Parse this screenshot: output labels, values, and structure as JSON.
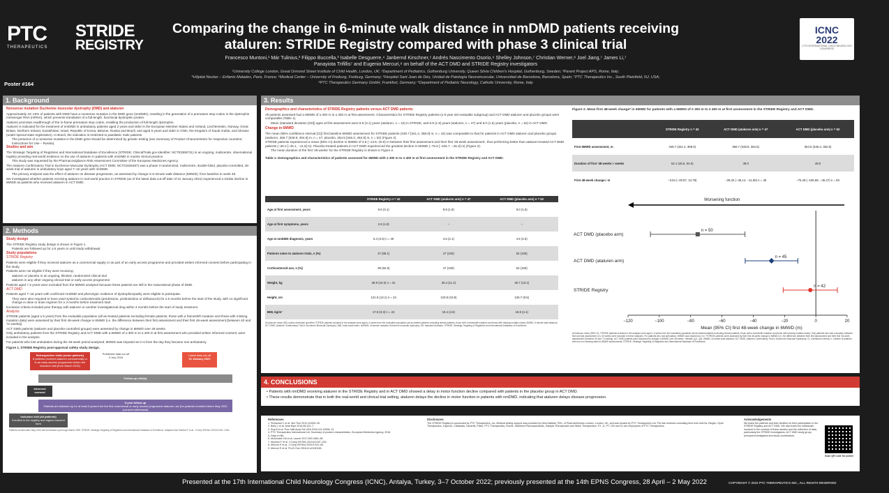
{
  "header": {
    "ptc_word": "PTC",
    "ptc_sub": "THERAPEUTICS",
    "stride_line1": "STRIDE",
    "stride_line2": "REGISTRY",
    "title_line1": "Comparing the change in 6-minute walk distance in nmDMD patients receiving",
    "title_line2": "ataluren: STRIDE Registry compared with phase 3 clinical trial",
    "authors_line1": "Francesco Muntoni,¹ Már Tulinius,² Filippo Buccella,³ Isabelle Desguerre,⁴ Janbernd Kirschner,⁵ Andrés Nascimento Osorio,⁶ Shelley Johnson,⁷ Christian Werner,⁸ Joel Jiang,⁷ James Li,⁷",
    "authors_line2": "Panayiota Trifillis⁷ and Eugenio Mercuri,⁹ on behalf of the ACT DMD and STRIDE Registry investigators",
    "affil_line1": "¹University College London, Great Ormond Street Institute of Child Health, London, UK; ²Department of Pediatrics, Gothenburg University, Queen Silvia Children's Hospital, Gothenburg, Sweden; ³Parent Project APS, Rome, Italy;",
    "affil_line2": "⁴Hôpital Necker – Enfants Malades, Paris, France; ⁵Medical Center – University of Freiburg, Freiburg, Germany; ⁶Hospital Sant Joan de Déu, Unidad de Patología Neuromuscular, Universidad de Barcelona, Barcelona, Spain; ⁷PTC Therapeutics Inc., South Plainfield, NJ, USA;",
    "affil_line3": "⁸PTC Therapeutics Germany GmbH, Frankfurt, Germany; ⁹Department of Pediatric Neurology, Catholic University, Rome, Italy",
    "icnc_big": "ICNC",
    "icnc_year": "2022",
    "icnc_small": "17TH INTERNATIONAL CHILD NEUROLOGY CONGRESS",
    "poster_no": "Poster #164"
  },
  "background": {
    "heading": "1. Background",
    "sub1": "Nonsense mutation Duchenne muscular dystrophy (DMD) and ataluren",
    "b1": "Approximately 10–15% of patients with DMD have a nonsense mutation in the DMD gene (nmDMD), resulting in the generation of a premature stop codon in the dystrophin messenger RNA (mRNA), which prevents translation of a full-length, functional dystrophin protein.",
    "b2": "Ataluren promotes readthrough of the in-frame premature stop codon, enabling the production of full-length dystrophin.",
    "b3": "Ataluren is indicated for the treatment of nmDMD in ambulatory patients aged 2 years and older in the European Member States and Iceland, Liechtenstein, Norway, Great Britain, Northern Ireland, Kazakhstan, Israel, Republic of Korea, Belarus, Russia and Brazil, and aged 5 years and older in Chile, the Kingdom of Saudi Arabia, and Ukraine (under special state registration). In Brazil, the indication is restricted to paediatric male patients.",
    "b3a": "The presence of a nonsense mutation in the DMD gene should be determined by genetic testing (see Summary of Product Characteristics for respective countries; Instructions for Use – Russia).",
    "sub2": "Studies and aim",
    "b4": "The Strategic Targeting of Registries and International Database of Excellence (STRIDE; ClinicalTrials.gov identifier: NCT02369731) is an ongoing, multicentre, observational registry providing real-world evidence on the use of ataluren in patients with nmDMD in routine clinical practice.",
    "b4a": "This study was requested by the Pharmacovigilance Risk Assessment Committee of the European Medicines Agency.",
    "b5": "The Ataluren Confirmatory Trial in Duchenne Muscular Dystrophy (ACT DMD; NCT01826487) was a phase 3 randomized, multicentre, double-blind, placebo-controlled, 48-week trial of ataluren in ambulatory boys aged 7–16 years with nmDMD.",
    "b5a": "The primary endpoint was the effect of ataluren on disease progression, as assessed by change in 6-minute walk distance (6MWD), from baseline to week 48.",
    "b6": "We investigated whether patients receiving ataluren in real-world practice in STRIDE (as of the latest data cut-off date of 31 January 2021) experienced a similar decline in 6MWD as patients who received ataluren in ACT DMD."
  },
  "methods": {
    "heading": "2. Methods",
    "sub1": "Study design",
    "m1": "The STRIDE Registry study design is shown in Figure 1.",
    "m1a": "Patients are followed up for ≥ 5 years or until study withdrawal.",
    "sub2": "Study populations",
    "sub2b": "STRIDE Registry",
    "m2": "Patients were eligible if they received ataluren as a commercial supply or as part of an early access programme and provided written informed consent before participating in the study.",
    "m3": "Patients were not eligible if they were receiving:",
    "m3a": "ataluren or placebo in an ongoing, blinded, randomized clinical trial",
    "m3b": "ataluren in any other ongoing clinical trial or early access programme.",
    "m4": "Patients aged < 5 years were excluded from the 6MWD analyses because these patients are still in the maturational phase of DMD.",
    "sub2c": "ACT DMD",
    "m5": "Patients aged 7–16 years with confirmed nmDMD and phenotypic evidence of dystrophinopathy were eligible to participate.",
    "m5a": "They were also required to have used systemic corticosteroids (prednisone, prednisolone or deflazacort) for ≥ 6 months before the start of the study, with no significant change in dose or dose regimen for ≥ 3 months before treatment start.",
    "m6": "Exclusion criteria included prior therapy with ataluren or another investigational drug within 3 months before the start of study treatment.",
    "sub2d": "Analysis",
    "m7": "STRIDE patients (aged ≥ 5 years) from the evaluable population (all as-treated patients excluding female patients, those with a frameshift mutation and those with missing mutation data) were assessed by their first 48-week change in 6MWD (i.e. the difference between their first assessment and their first 48-week assessment [between 40 and 72 weeks]).",
    "m8": "ACT DMD patients (ataluren and placebo-controlled groups) were assessed by change in 6MWD over 48 weeks.",
    "m9": "Only ambulatory patients from the STRIDE Registry and ACT DMD with a 6MWD of ≥ 300 m to ≤ 400 m at first assessment who provided written informed consent, were included in the analysis.",
    "m10": "For patients who lost ambulation during the 48-week period analysed, 6MWD was imputed as 0 m from the day they became non-ambulatory.",
    "fig1_caption": "Figure 1. STRIDE Registry post-approval safety study design.",
    "fig1_retro": "Retrospective visits (some patients)",
    "fig1_retro_sub": "If patients received ataluren commercially or in an early access programme before the inclusion visit (from March 2015)",
    "fig1_published": "Published data cut-off",
    "fig1_published_date": "9 July 2018",
    "fig1_latest": "Latest data cut-off",
    "fig1_latest_date": "31 January 2021",
    "fig1_followup": "Follow-up visit(s)",
    "fig1_informed": "Informed consent",
    "fig1_5year": "5-year follow-up",
    "fig1_5year_sub": "Patients are followed up for at least 5 years from the first commercial or early access programme ataluren use (for patients enrolled before May 2020 (consent withdrawal)",
    "fig1_inclusion": "Inclusion visit (all patients)",
    "fig1_inclusion_sub": "Enrolled in the registry and signed consent form",
    "fig1_note": "Patients enrolled after May 2020 will be followed up through March 2025. STRIDE, Strategic Targeting of Registries and International Database of Excellence. Adapted from Muntoni F et al. J Comp Eff Res 2019;8:1187–1200."
  },
  "results": {
    "heading": "3. Results",
    "sub1": "Demographics and characteristics of STRIDE Registry patients versus ACT DMD patients",
    "r1": "All patients assessed had a 6MWD of ≥ 300 m to ≤ 400 m at first assessment. Characteristics for STRIDE Registry patients (≥ 5-year old evaluable subgroup) and ACT DMD ataluren and placebo groups were comparable (Table 1).",
    "r1a": "Mean (standard deviation [SD]) ages at first assessment were 9.6 (3.1) years (ataluren, n = 42) in STRIDE, and 8.9 (1.8) years (ataluren, n = 47) and 9.0 (1.5) years (placebo, n = 52) in ACT DMD.",
    "sub2": "Change in 6MWD",
    "r2": "The mean (95% confidence interval [CI]) first baseline 6MWD assessment for STRIDE patients (349.7 [341.4, 358.0] m, n = 42) was comparable to that for patients in ACT DMD ataluren and placebo groups (ataluren, 356.7 [348.9, 364.5] m, n = 47; placebo, 354.5 [346.3, 362.8] m, n = 52) (Figure 2).",
    "r3": "STRIDE patients experienced a mean (95% CI) decline in 6MWD of 3.5 (−13.8, 20.9) m between their first assessment and their first '48-week assessment', thus performing better than ataluren-treated ACT DMD patients (−28.3 [−45.1, −11.5] m). Placebo-treated patients in ACT DMD experienced the greatest decline in 6MWD (−75.5 [−105.7, −45.3] m) (Figure 2).",
    "r3a": "The mean duration of the first '48 weeks' for the STRIDE Registry is shown in Figure 2.",
    "table1_caption": "Table 1. Demographics and characteristics of patients assessed for 6MWD with ≥ 300 m to ≤ 400 m at first assessment in the STRIDE Registry and ACT DMD.",
    "table1_headers": [
      "",
      "STRIDE Registry n = 42",
      "ACT DMD (ataluren arm) n = 47",
      "ACT DMD (placebo arm) n = 52"
    ],
    "table1_rows": [
      [
        "Age at first assessment, years",
        "9.6 (3.1)",
        "8.9 (1.8)",
        "9.0 (1.5)"
      ],
      [
        "Age at first symptoms, years",
        "2.8 (1.8)",
        "–",
        "–"
      ],
      [
        "Age at nmDMD diagnosis, years",
        "5.4 (2.6) n = 40",
        "4.6 (2.1)",
        "4.5 (2.6)"
      ],
      [
        "Patients naïve to ataluren trials, n (%)",
        "37 (88.1)",
        "47 (100)",
        "52 (100)"
      ],
      [
        "Corticosteroid use, n (%)",
        "39 (92.9)",
        "47 (100)",
        "52 (100)"
      ],
      [
        "Weight, kg",
        "28.9 (10.6) n = 31",
        "30.4 (11.2)",
        "30.7 (10.2)"
      ],
      [
        "Height, cm",
        "121.9 (13.1) n = 24",
        "123.8 (10.8)",
        "126.7 (9.5)"
      ],
      [
        "BMI, kg/m²",
        "17.8 (3.3) n = 24",
        "19.4 (4.8)",
        "18.8 (4.1)"
      ]
    ],
    "table1_note": "All data are mean (SD) unless otherwise specified. STRIDE patients included in the analysis were aged ≥ 5 years from the evaluable population (all as-treated patients excluding female patients, those with a frameshift mutation and those with missing mutation data). 6MWD, 6-minute walk distance; ACT DMD, Ataluren Confirmatory Trial in Duchenne Muscular Dystrophy; BMI, body mass index; nmDMD, nonsense mutation Duchenne muscular dystrophy; SD, standard deviation; STRIDE, Strategic Targeting of Registries and International Database of Excellence.",
    "fig2_caption": "Figure 2. Mean first 48-week change* in 6MWD for patients with a 6MWD of ≥ 300 m to ≤ 400 m at first assessment in the STRIDE Registry and ACT DMD.",
    "table2_headers": [
      "",
      "STRIDE Registry n = 42",
      "ACT DMD (ataluren arm) n = 47",
      "ACT DMD (placebo arm) n = 52"
    ],
    "table2_rows": [
      [
        "First 6MWD assessment, m",
        "349.7 (341.4, 358.0)",
        "356.7 (348.9, 364.5)",
        "354.5 (346.3, 362.8)"
      ],
      [
        "Duration of first '48 weeks',ᵃ weeks",
        "52.1 (45.5, 54.6)",
        "48.0",
        "48.0"
      ],
      [
        "First 48-week change,ᵃ m",
        "−3.54 (−20.87, 13.78)",
        "−28.32 (−45.14, −11.50) n = 45",
        "−75.48 (−105.68, −45.27) n = 50"
      ]
    ],
    "fig2_notes": "All data are mean (95% CI). STRIDE patients included in the analysis were aged ≥ 5 years from the evaluable population (all as-treated patients excluding female patients, those with a frameshift mutation and those with missing mutation data). Only patients who had a duration between first and last assessment of ≥ 40 weeks were included in these analyses. For patients who lost ambulation, 6MWD was imputed as 0 m. *STRIDE patients were assessed by their first 48-week change in 6MWD (i.e. the difference between their first assessment and their first '48-week assessment' [between 40 and 72 weeks]). ACT DMD patients were assessed by change in 6MWD over 48 weeks. ᵃMedian (Q1, Q3). 6MWD, 6-minute walk distance; ACT DMD, Ataluren Confirmatory Trial in Duchenne Muscular Dystrophy; CI, confidence interval; n, number of patients with two non-missing data for 6MWD assessments; STRIDE, Strategic Targeting of Registries and International Database of Excellence."
  },
  "chart_data": {
    "type": "forest",
    "title": "",
    "annotation": "Worsening function",
    "xlabel": "Mean (95% CI) first 48-week change in 6MWD (m)",
    "ylabel": "",
    "xlim": [
      -120,
      20
    ],
    "xticks": [
      -120,
      -100,
      -80,
      -60,
      -40,
      -20,
      0,
      20
    ],
    "series": [
      {
        "name": "ACT DMD (placebo arm)",
        "mean": -75.48,
        "lo": -105.68,
        "hi": -45.27,
        "n_label": "n = 50",
        "color": "#555555"
      },
      {
        "name": "ACT DMD (ataluren arm)",
        "mean": -28.32,
        "lo": -45.14,
        "hi": -11.5,
        "n_label": "n = 45",
        "color": "#1f3f7a"
      },
      {
        "name": "STRIDE Registry",
        "mean": -3.54,
        "lo": -20.87,
        "hi": 13.78,
        "n_label": "n = 42",
        "color": "#e0342c"
      }
    ]
  },
  "conclusions": {
    "heading": "4. CONCLUSIONS",
    "c1": "Patients with nmDMD receiving ataluren in the STRIDE Registry and in ACT DMD showed a delay in motor function decline compared with patients in the placebo group in ACT DMD.",
    "c2": "These results demonstrate that in both the real-world and clinical trial setting, ataluren delays the decline in motor function in patients with nmDMD, indicating that ataluren delays disease progression."
  },
  "references": {
    "heading": "References",
    "items": [
      "1. Pichavant C et al. Mol Ther 2011;19:830–40.",
      "2. Bello L et al. Acta Myol 2016;35:122–7.",
      "3. Roy B et al. Proc Natl Acad Sci USA 2016;113:12508–13.",
      "4. PTC Therapeutics International Ltd. Summary of product characteristics. European Medicines Agency, 2018.",
      "5. Data on file.",
      "6. McDonald CM et al. Lancet 2017;390:1489–98.",
      "7. Muntoni F et al. J Comp Eff Res 2019;8:1187–200.",
      "8. Mercuri E et al. J Comp Eff Res 2020;9:341–60.",
      "9. Mercuri E et al. PLoS One 2018;11:e0150165."
    ],
    "disclosures_heading": "Disclosures",
    "disclosures": "The STRIDE Registry is sponsored by PTC Therapeutics, Inc. Medical writing support was provided by Dina Dabbak, PhD, of PharmaGenesis London, London, UK, and was funded by PTC Therapeutics Ltd. FM has received consulting fees from AveXis, Biogen, Dyne Therapeutics, Capricor, Catabasis, Novartis, Pfizer, PTC Therapeutics, Roche, Santhera Pharmaceuticals, Sarepta Therapeutics and Wave Therapeutics. PJ, JL, PT, CW and SJ are employees of PTC Therapeutics.",
    "ack_heading": "Acknowledgements",
    "ack": "We thank the patients and their families for their participation in the STRIDE Registry and ACT DMD. We also thank the individuals involved in the conduct of these studies and the collection of data, particularly the STRIDE investigators, ACT DMD study group, principal investigators and study coordinators.",
    "qr_label": "Scan QR code for poster"
  },
  "footer": {
    "text": "Presented at the 17th International Child Neurology Congress (ICNC), Antalya, Turkey, 3–7 October 2022; previously presented at the 14th EPNS Congress, 28 April – 2 May 2022",
    "copyright": "COPYRIGHT © 2022 PTC THERAPEUTICS INC., ALL RIGHTS RESERVED"
  }
}
